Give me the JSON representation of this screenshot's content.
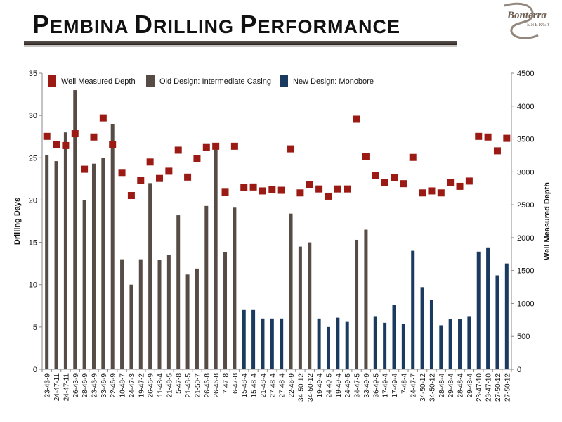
{
  "header": {
    "title_parts": [
      {
        "text": "P",
        "size": "big"
      },
      {
        "text": "EMBINA ",
        "size": "small"
      },
      {
        "text": "D",
        "size": "big"
      },
      {
        "text": "RILLING ",
        "size": "small"
      },
      {
        "text": "P",
        "size": "big"
      },
      {
        "text": "ERFORMANCE",
        "size": "small"
      }
    ],
    "logo_text": "Bonterra",
    "logo_subtext": "ENERGY"
  },
  "colors": {
    "old_design": "#574b45",
    "new_design": "#1a3a60",
    "well_depth": "#9b1a14",
    "logo": "#6f5f53",
    "axis": "#888888"
  },
  "chart_data": {
    "type": "bar",
    "categories": [
      "23-43-9",
      "24-47-11",
      "24-47-11",
      "26-43-9",
      "28-46-9",
      "23-43-9",
      "33-46-9",
      "22-46-9",
      "10-48-7",
      "24-47-3",
      "19-47-2",
      "26-46-9",
      "11-48-4",
      "21-48-5",
      "5-47-8",
      "21-48-5",
      "21-50-7",
      "26-46-8",
      "26-46-8",
      "7-47-8",
      "6-47-8",
      "15-48-4",
      "15-48-4",
      "21-48-4",
      "27-48-4",
      "27-48-4",
      "22-46-9",
      "34-50-12",
      "34-50-12",
      "19-49-4",
      "24-49-5",
      "19-49-4",
      "24-49-5",
      "34-47-5",
      "33-49-9",
      "36-49-5",
      "17-49-4",
      "17-49-4",
      "7-48-4",
      "24-47-7",
      "34-50-12",
      "34-50-12",
      "28-48-4",
      "29-48-4",
      "28-48-4",
      "29-48-4",
      "23-47-10",
      "23-47-10",
      "27-50-12",
      "27-50-12"
    ],
    "series": [
      {
        "name": "Well Measured Depth",
        "type": "scatter",
        "axis": "right",
        "values": [
          3540,
          3420,
          3400,
          3580,
          3040,
          3530,
          3820,
          3410,
          2990,
          2640,
          2870,
          3150,
          2900,
          3010,
          3330,
          2920,
          3200,
          3370,
          3390,
          2690,
          3390,
          2760,
          2770,
          2710,
          2730,
          2720,
          3350,
          2680,
          2810,
          2740,
          2630,
          2740,
          2740,
          3800,
          3230,
          2940,
          2840,
          2910,
          2820,
          3220,
          2680,
          2710,
          2680,
          2840,
          2780,
          2860,
          3540,
          3530,
          3320,
          3510
        ]
      },
      {
        "name": "Old Design: Intermediate Casing",
        "type": "bar",
        "axis": "left",
        "values": [
          25.3,
          24.6,
          28,
          33,
          20,
          24.3,
          25,
          29,
          13,
          10,
          13,
          22,
          12.9,
          13.5,
          18.2,
          11.2,
          11.9,
          19.3,
          26.5,
          13.8,
          19.1,
          null,
          null,
          null,
          null,
          null,
          18.4,
          14.5,
          15,
          null,
          null,
          null,
          null,
          15.3,
          16.5,
          null,
          null,
          null,
          null,
          null,
          null,
          null,
          null,
          null,
          null,
          null,
          null,
          null,
          null,
          null
        ]
      },
      {
        "name": "New Design: Monobore",
        "type": "bar",
        "axis": "left",
        "values": [
          null,
          null,
          null,
          null,
          null,
          null,
          null,
          null,
          null,
          null,
          null,
          null,
          null,
          null,
          null,
          null,
          null,
          null,
          null,
          null,
          null,
          7,
          7,
          6,
          6,
          6,
          null,
          null,
          null,
          6,
          5,
          6.1,
          5.6,
          null,
          null,
          6.2,
          5.5,
          7.6,
          5.4,
          14,
          9.7,
          8.2,
          5.2,
          5.9,
          5.9,
          6.2,
          13.9,
          14.4,
          11.1,
          12.5
        ]
      }
    ],
    "ylabel": "Drilling Days",
    "y2label": "Well Measured Depth",
    "ylim": [
      0,
      35
    ],
    "y2lim": [
      0,
      4500
    ],
    "yticks": [
      0,
      5,
      10,
      15,
      20,
      25,
      30,
      35
    ],
    "y2ticks": [
      0,
      500,
      1000,
      1500,
      2000,
      2500,
      3000,
      3500,
      4000,
      4500
    ],
    "legend_position": "top",
    "grid": false
  }
}
